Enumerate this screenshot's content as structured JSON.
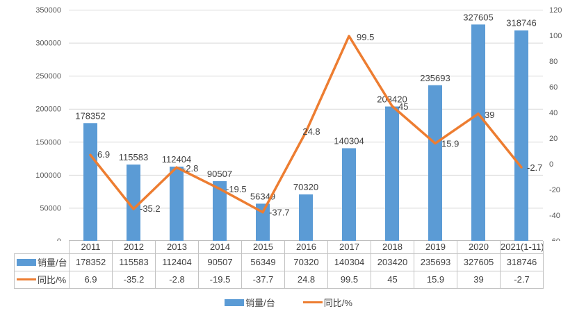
{
  "chart_data": {
    "type": "combo-bar-line",
    "title": "",
    "categories": [
      "2011",
      "2012",
      "2013",
      "2014",
      "2015",
      "2016",
      "2017",
      "2018",
      "2019",
      "2020",
      "2021(1-11)"
    ],
    "series": [
      {
        "name": "销量/台",
        "type": "bar",
        "color": "#5b9bd5",
        "axis": "left",
        "values": [
          178352,
          115583,
          112404,
          90507,
          56349,
          70320,
          140304,
          203420,
          235693,
          327605,
          318746
        ],
        "labels": [
          "178352",
          "115583",
          "112404",
          "90507",
          "56349",
          "70320",
          "140304",
          "203420",
          "235693",
          "327605",
          "318746"
        ]
      },
      {
        "name": "同比/%",
        "type": "line",
        "color": "#ed7d31",
        "axis": "right",
        "values": [
          6.9,
          -35.2,
          -2.8,
          -19.5,
          -37.7,
          24.8,
          99.5,
          45,
          15.9,
          39,
          -2.7
        ],
        "labels": [
          "6.9",
          "-35.2",
          "-2.8",
          "-19.5",
          "-37.7",
          "24.8",
          "99.5",
          "45",
          "15.9",
          "39",
          "-2.7"
        ]
      }
    ],
    "left_axis": {
      "min": 0,
      "max": 350000,
      "step": 50000,
      "tick_labels": [
        "0",
        "50000",
        "100000",
        "150000",
        "200000",
        "250000",
        "300000",
        "350000"
      ]
    },
    "right_axis": {
      "min": -60,
      "max": 120,
      "step": 20,
      "tick_labels": [
        "-60",
        "-40",
        "-20",
        "0",
        "20",
        "40",
        "60",
        "80",
        "100",
        "120"
      ]
    },
    "grid": true,
    "legend_position": "bottom",
    "data_table_shown": true
  },
  "legend": {
    "items": [
      {
        "label": "销量/台",
        "swatch": "bar",
        "color": "#5b9bd5"
      },
      {
        "label": "同比/%",
        "swatch": "line",
        "color": "#ed7d31"
      }
    ]
  },
  "colors": {
    "bar": "#5b9bd5",
    "line": "#ed7d31",
    "axis_text": "#595959",
    "label_text": "#404040",
    "gridline": "#d9d9d9",
    "axis_line": "#bfbfbf",
    "table_border": "#c3c3c3",
    "background": "#ffffff"
  }
}
